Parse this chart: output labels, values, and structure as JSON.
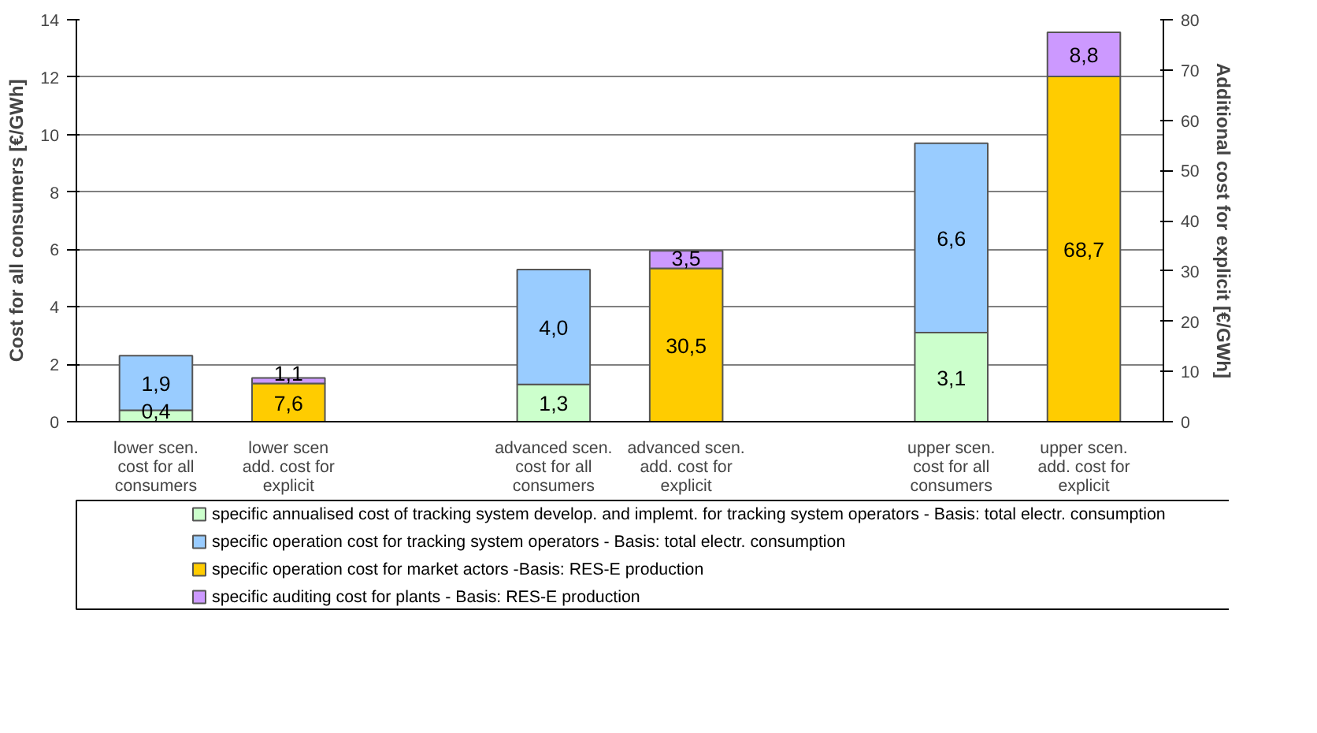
{
  "chart_data": {
    "type": "bar",
    "stacked": true,
    "ylabel": "Cost for all consumers [€/GWh]",
    "y2label": "Additional cost for explicit [€/GWh]",
    "categories": [
      "lower scen.\ncost for all\nconsumers",
      "lower scen\nadd. cost for\nexplicit",
      null,
      "advanced scen.\ncost for all\nconsumers",
      "advanced scen.\nadd. cost for\nexplicit",
      null,
      "upper scen.\ncost for all\nconsumers",
      "upper scen.\nadd. cost for\nexplicit"
    ],
    "ylim": [
      0,
      14
    ],
    "yticks": [
      0,
      2,
      4,
      6,
      8,
      10,
      12,
      14
    ],
    "y2lim": [
      0,
      80
    ],
    "y2ticks": [
      0,
      10,
      20,
      30,
      40,
      50,
      60,
      70,
      80
    ],
    "grid": "y",
    "legend": "bottom",
    "series": [
      {
        "name": "specific annualised cost of tracking system develop. and implemt. for tracking system operators - Basis: total electr. consumption",
        "color": "#ccffcc",
        "values": [
          0.4,
          null,
          null,
          1.3,
          null,
          null,
          3.1,
          null
        ],
        "value_labels": [
          "0,4",
          null,
          null,
          "1,3",
          null,
          null,
          "3,1",
          null
        ]
      },
      {
        "name": "specific operation cost for tracking system operators - Basis: total electr. consumption",
        "color": "#99ccff",
        "values": [
          1.9,
          null,
          null,
          4.0,
          null,
          null,
          6.6,
          null
        ],
        "value_labels": [
          "1,9",
          null,
          null,
          "4,0",
          null,
          null,
          "6,6",
          null
        ]
      },
      {
        "name": "specific operation cost for market actors -Basis: RES-E production",
        "color": "#ffcc00",
        "axis": "y2",
        "values": [
          null,
          7.6,
          null,
          null,
          30.5,
          null,
          null,
          68.7
        ],
        "value_labels": [
          null,
          "7,6",
          null,
          null,
          "30,5",
          null,
          null,
          "68,7"
        ]
      },
      {
        "name": "specific auditing cost for plants - Basis: RES-E production",
        "color": "#cc99ff",
        "axis": "y2",
        "values": [
          null,
          1.1,
          null,
          null,
          3.5,
          null,
          null,
          8.8
        ],
        "value_labels": [
          null,
          "1,1",
          null,
          null,
          "3,5",
          null,
          null,
          "8,8"
        ]
      }
    ]
  }
}
